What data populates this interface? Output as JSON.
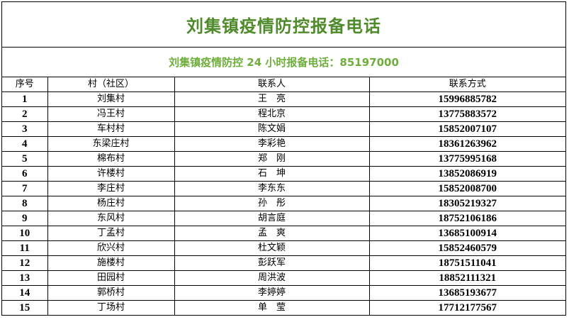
{
  "title": "刘集镇疫情防控报备电话",
  "subtitle": "刘集镇疫情防控 24 小时报备电话：85197000",
  "colors": {
    "title": "#4f8a2b",
    "subtitle": "#6fae3c"
  },
  "table": {
    "headers": [
      "序号",
      "村（社区）",
      "联系人",
      "联系方式"
    ],
    "rows": [
      [
        "1",
        "刘集村",
        "王　亮",
        "15996885782"
      ],
      [
        "2",
        "冯王村",
        "程北京",
        "13775883572"
      ],
      [
        "3",
        "车村村",
        "陈文娟",
        "15852007107"
      ],
      [
        "4",
        "东梁庄村",
        "李彩艳",
        "18361263962"
      ],
      [
        "5",
        "棉布村",
        "郑　刚",
        "13775995168"
      ],
      [
        "6",
        "许楼村",
        "石　坤",
        "13852086919"
      ],
      [
        "7",
        "李庄村",
        "李东东",
        "15852008700"
      ],
      [
        "8",
        "杨庄村",
        "孙　彤",
        "18305219327"
      ],
      [
        "9",
        "东风村",
        "胡言庭",
        "18752106186"
      ],
      [
        "10",
        "丁孟村",
        "孟　爽",
        "13685100914"
      ],
      [
        "11",
        "欣兴村",
        "杜文颖",
        "15852460579"
      ],
      [
        "12",
        "施楼村",
        "彭跃军",
        "18751511041"
      ],
      [
        "13",
        "田园村",
        "周洪波",
        "18852111321"
      ],
      [
        "14",
        "郭桥村",
        "李婷婷",
        "13685193677"
      ],
      [
        "15",
        "丁场村",
        "单　莹",
        "17712177567"
      ]
    ]
  }
}
